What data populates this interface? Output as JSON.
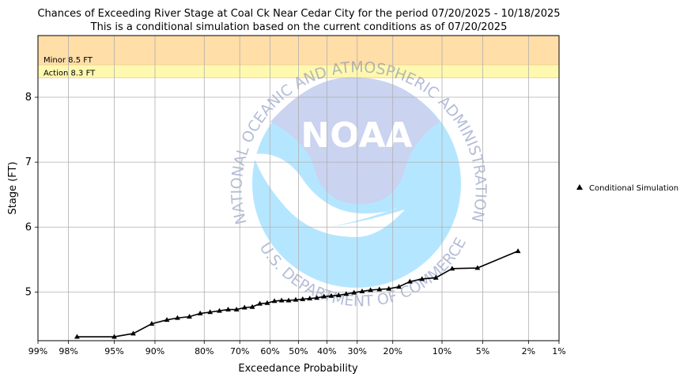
{
  "chart_data": {
    "type": "line",
    "title": "Chances of Exceeding River Stage at Coal Ck Near Cedar City for the period 07/20/2025 - 10/18/2025",
    "subtitle": "This is a conditional simulation based on the current conditions as of 07/20/2025",
    "xlabel": "Exceedance Probability",
    "ylabel": "Stage (FT)",
    "x_scale": "normal-probability (reversed)",
    "ylim": [
      4.25,
      8.95
    ],
    "grid": true,
    "legend_position": "right",
    "x_ticks": [
      {
        "p": 0.99,
        "label": "99%"
      },
      {
        "p": 0.98,
        "label": "98%"
      },
      {
        "p": 0.95,
        "label": "95%"
      },
      {
        "p": 0.9,
        "label": "90%"
      },
      {
        "p": 0.8,
        "label": "80%"
      },
      {
        "p": 0.7,
        "label": "70%"
      },
      {
        "p": 0.6,
        "label": "60%"
      },
      {
        "p": 0.5,
        "label": "50%"
      },
      {
        "p": 0.4,
        "label": "40%"
      },
      {
        "p": 0.3,
        "label": "30%"
      },
      {
        "p": 0.2,
        "label": "20%"
      },
      {
        "p": 0.1,
        "label": "10%"
      },
      {
        "p": 0.05,
        "label": "5%"
      },
      {
        "p": 0.02,
        "label": "2%"
      },
      {
        "p": 0.01,
        "label": "1%"
      }
    ],
    "y_ticks": [
      5,
      6,
      7,
      8
    ],
    "thresholds": [
      {
        "name": "Minor",
        "label": "Minor 8.5 FT",
        "value": 8.5,
        "color": "#ffdea8"
      },
      {
        "name": "Action",
        "label": "Action 8.3 FT",
        "value": 8.3,
        "color": "#fff9b0"
      }
    ],
    "series": [
      {
        "name": "Conditional Simulation",
        "color": "#000000",
        "marker": "triangle",
        "points": [
          [
            0.976,
            4.31
          ],
          [
            0.95,
            4.31
          ],
          [
            0.93,
            4.36
          ],
          [
            0.905,
            4.51
          ],
          [
            0.88,
            4.57
          ],
          [
            0.86,
            4.6
          ],
          [
            0.835,
            4.62
          ],
          [
            0.81,
            4.67
          ],
          [
            0.785,
            4.69
          ],
          [
            0.76,
            4.71
          ],
          [
            0.735,
            4.73
          ],
          [
            0.71,
            4.73
          ],
          [
            0.685,
            4.76
          ],
          [
            0.66,
            4.77
          ],
          [
            0.635,
            4.82
          ],
          [
            0.61,
            4.83
          ],
          [
            0.585,
            4.86
          ],
          [
            0.56,
            4.87
          ],
          [
            0.535,
            4.87
          ],
          [
            0.51,
            4.88
          ],
          [
            0.485,
            4.89
          ],
          [
            0.46,
            4.9
          ],
          [
            0.435,
            4.91
          ],
          [
            0.41,
            4.93
          ],
          [
            0.385,
            4.94
          ],
          [
            0.36,
            4.95
          ],
          [
            0.335,
            4.97
          ],
          [
            0.31,
            4.99
          ],
          [
            0.285,
            5.01
          ],
          [
            0.26,
            5.03
          ],
          [
            0.235,
            5.04
          ],
          [
            0.21,
            5.05
          ],
          [
            0.185,
            5.08
          ],
          [
            0.16,
            5.16
          ],
          [
            0.135,
            5.2
          ],
          [
            0.11,
            5.22
          ],
          [
            0.085,
            5.36
          ],
          [
            0.055,
            5.37
          ],
          [
            0.025,
            5.63
          ]
        ]
      }
    ]
  },
  "watermark": {
    "text_top": "NATIONAL OCEANIC AND ATMOSPHERIC ADMINISTRATION",
    "text_bottom": "U.S. DEPARTMENT OF COMMERCE",
    "center_text": "NOAA"
  }
}
